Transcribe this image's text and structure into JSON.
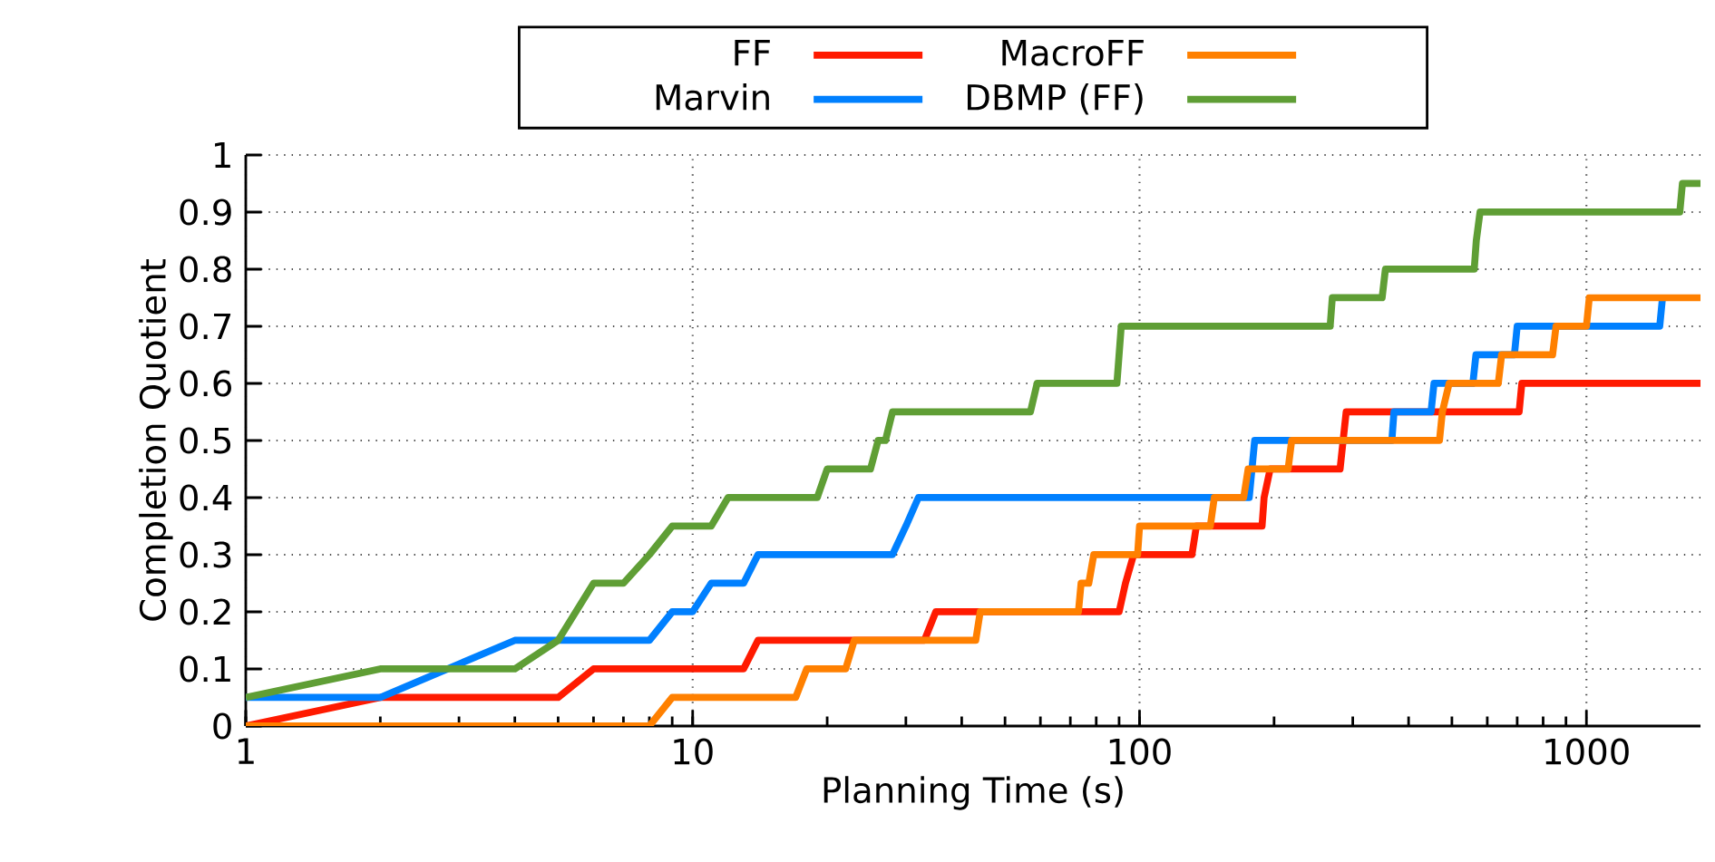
{
  "chart_data": {
    "type": "line",
    "xlabel": "Planning Time (s)",
    "ylabel": "Completion Quotient",
    "log": "x",
    "xlim": [
      1,
      1800
    ],
    "ylim": [
      0,
      1
    ],
    "xticks": [
      1,
      10,
      100,
      1000
    ],
    "yticks": [
      0,
      0.1,
      0.2,
      0.3,
      0.4,
      0.5,
      0.6,
      0.7,
      0.8,
      0.9,
      1
    ],
    "grid": true,
    "legend": "top",
    "marker": "none",
    "line_style": "solid",
    "series": [
      {
        "name": "FF",
        "color": "#ff1a00",
        "x": [
          1,
          2,
          5,
          6,
          13,
          14,
          33,
          35,
          90,
          93,
          97,
          131,
          134,
          188,
          190,
          196,
          281,
          290,
          707,
          717,
          1800
        ],
        "values": [
          0,
          0.05,
          0.05,
          0.1,
          0.1,
          0.15,
          0.15,
          0.2,
          0.2,
          0.25,
          0.3,
          0.3,
          0.35,
          0.35,
          0.4,
          0.45,
          0.45,
          0.55,
          0.55,
          0.6,
          0.6
        ]
      },
      {
        "name": "Marvin",
        "color": "#0080ff",
        "x": [
          1,
          2,
          4,
          8,
          9,
          10,
          11,
          13,
          14,
          28,
          30,
          32,
          176,
          181,
          367,
          371,
          449,
          456,
          557,
          566,
          690,
          700,
          1459,
          1480
        ],
        "values": [
          0.05,
          0.05,
          0.15,
          0.15,
          0.2,
          0.2,
          0.25,
          0.25,
          0.3,
          0.3,
          0.35,
          0.4,
          0.4,
          0.5,
          0.5,
          0.55,
          0.55,
          0.6,
          0.6,
          0.65,
          0.65,
          0.7,
          0.7,
          0.75
        ]
      },
      {
        "name": "MacroFF",
        "color": "#ff8000",
        "x": [
          1,
          8,
          9,
          17,
          18,
          22,
          23,
          43,
          44,
          73,
          74,
          77,
          79,
          99,
          100,
          144,
          147,
          171,
          175,
          215,
          219,
          469,
          476,
          493,
          635,
          646,
          840,
          855,
          1000,
          1015,
          1800
        ],
        "values": [
          0,
          0,
          0.05,
          0.05,
          0.1,
          0.1,
          0.15,
          0.15,
          0.2,
          0.2,
          0.25,
          0.25,
          0.3,
          0.3,
          0.35,
          0.35,
          0.4,
          0.4,
          0.45,
          0.45,
          0.5,
          0.5,
          0.55,
          0.6,
          0.6,
          0.65,
          0.65,
          0.7,
          0.7,
          0.75,
          0.75
        ]
      },
      {
        "name": "DBMP (FF)",
        "color": "#5f9e35",
        "x": [
          1,
          2,
          4,
          5,
          6,
          7,
          8,
          9,
          11,
          12,
          19,
          20,
          25,
          26,
          27,
          28,
          57,
          59,
          89,
          91,
          267,
          270,
          349,
          355,
          561,
          567,
          578,
          1618,
          1640,
          1800
        ],
        "values": [
          0.05,
          0.1,
          0.1,
          0.15,
          0.25,
          0.25,
          0.3,
          0.35,
          0.35,
          0.4,
          0.4,
          0.45,
          0.45,
          0.5,
          0.5,
          0.55,
          0.55,
          0.6,
          0.6,
          0.7,
          0.7,
          0.75,
          0.75,
          0.8,
          0.8,
          0.85,
          0.9,
          0.9,
          0.95,
          0.95
        ]
      }
    ]
  }
}
